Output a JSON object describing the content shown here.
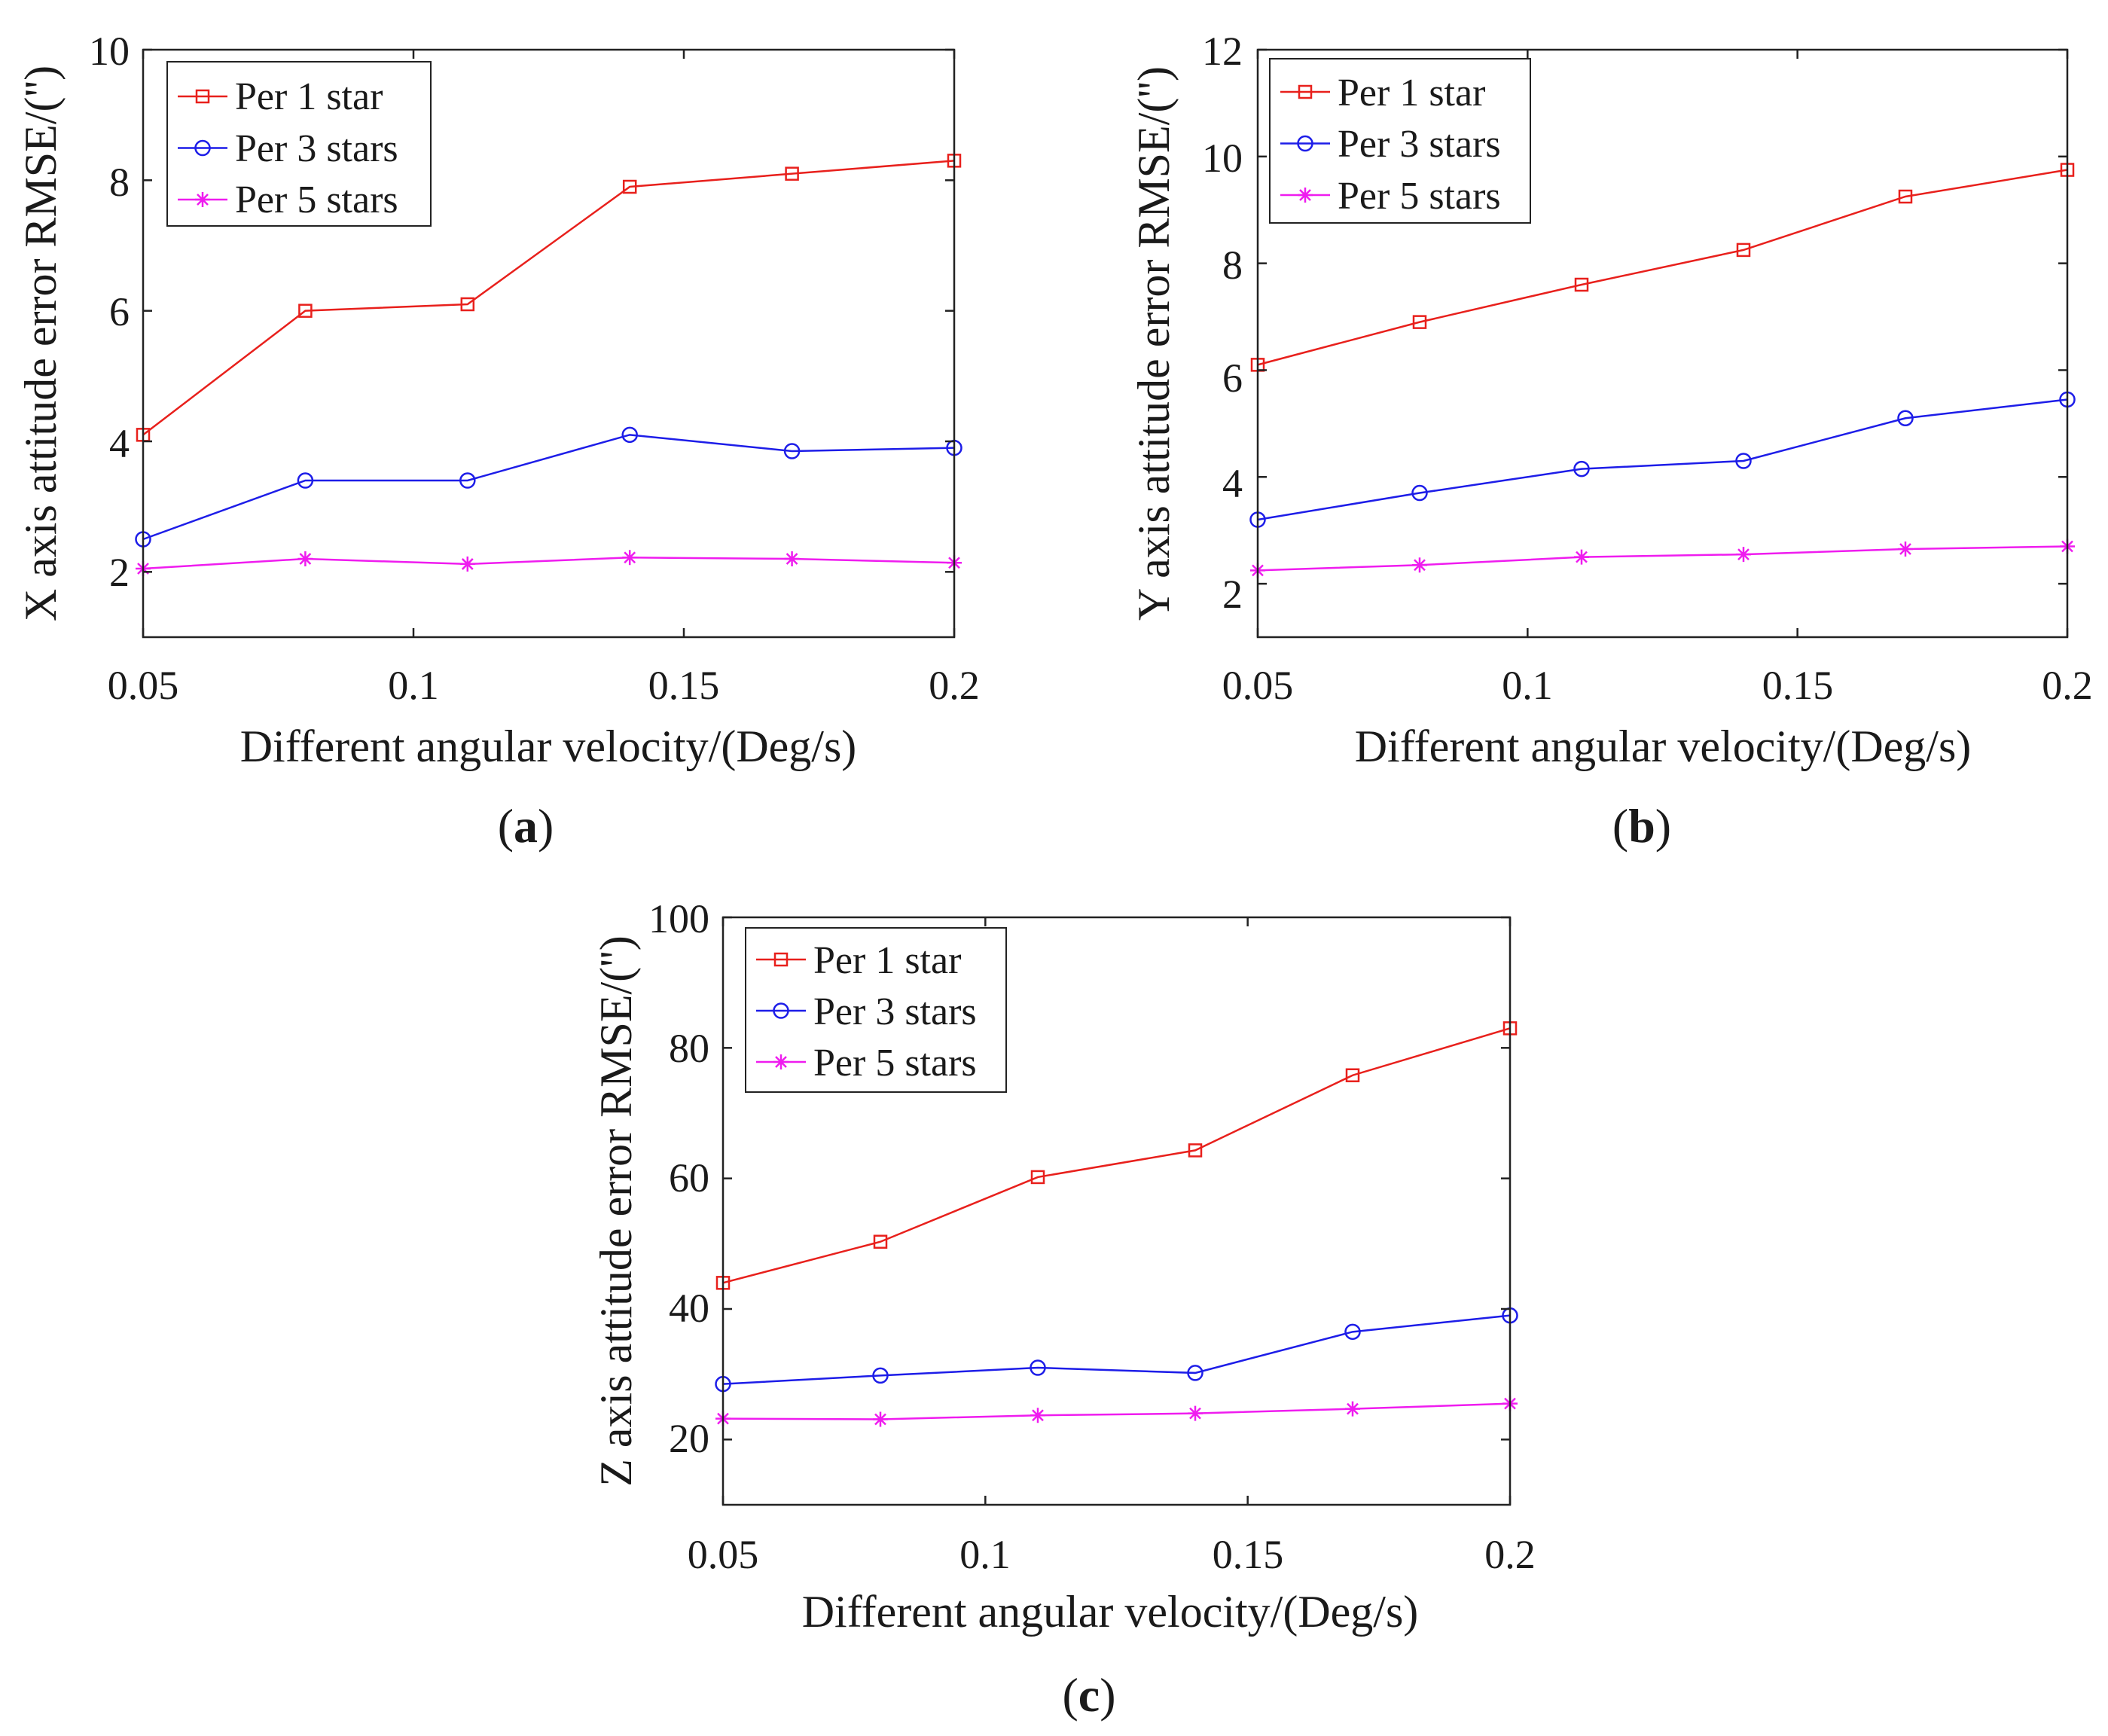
{
  "chart_data": [
    {
      "panel": "a",
      "type": "line",
      "xlabel": "Different angular velocity/(Deg/s)",
      "ylabel": "X axis attitude error RMSE/('')",
      "x": [
        0.05,
        0.08,
        0.11,
        0.14,
        0.17,
        0.2
      ],
      "xlim": [
        0.05,
        0.2
      ],
      "xticks": [
        0.05,
        0.1,
        0.15,
        0.2
      ],
      "xtick_labels": [
        "0.05",
        "0.1",
        "0.15",
        "0.2"
      ],
      "ylim": [
        1,
        10
      ],
      "yticks": [
        2,
        4,
        6,
        8,
        10
      ],
      "ytick_labels": [
        "2",
        "4",
        "6",
        "8",
        "10"
      ],
      "legend_position": "top-left",
      "series": [
        {
          "name": "Per 1 star",
          "color": "#e8201c",
          "marker": "square",
          "values": [
            4.1,
            6.0,
            6.1,
            7.9,
            8.1,
            8.3
          ]
        },
        {
          "name": "Per 3 stars",
          "color": "#1d1de8",
          "marker": "circle",
          "values": [
            2.5,
            3.4,
            3.4,
            4.1,
            3.85,
            3.9
          ]
        },
        {
          "name": "Per 5 stars",
          "color": "#ef1cef",
          "marker": "asterisk",
          "values": [
            2.05,
            2.2,
            2.12,
            2.22,
            2.2,
            2.14
          ]
        }
      ],
      "panel_label": {
        "open": "(",
        "letter": "a",
        "close": ")"
      }
    },
    {
      "panel": "b",
      "type": "line",
      "xlabel": "Different angular velocity/(Deg/s)",
      "ylabel": "Y axis attitude error RMSE/('')",
      "x": [
        0.05,
        0.08,
        0.11,
        0.14,
        0.17,
        0.2
      ],
      "xlim": [
        0.05,
        0.2
      ],
      "xticks": [
        0.05,
        0.1,
        0.15,
        0.2
      ],
      "xtick_labels": [
        "0.05",
        "0.1",
        "0.15",
        "0.2"
      ],
      "ylim": [
        1,
        12
      ],
      "yticks": [
        2,
        4,
        6,
        8,
        10,
        12
      ],
      "ytick_labels": [
        "2",
        "4",
        "6",
        "8",
        "10",
        "12"
      ],
      "legend_position": "top-left",
      "series": [
        {
          "name": "Per 1 star",
          "color": "#e8201c",
          "marker": "square",
          "values": [
            6.1,
            6.9,
            7.6,
            8.25,
            9.25,
            9.75
          ]
        },
        {
          "name": "Per 3 stars",
          "color": "#1d1de8",
          "marker": "circle",
          "values": [
            3.2,
            3.7,
            4.15,
            4.3,
            5.1,
            5.45
          ]
        },
        {
          "name": "Per 5 stars",
          "color": "#ef1cef",
          "marker": "asterisk",
          "values": [
            2.25,
            2.35,
            2.5,
            2.55,
            2.65,
            2.7
          ]
        }
      ],
      "panel_label": {
        "open": "(",
        "letter": "b",
        "close": ")"
      }
    },
    {
      "panel": "c",
      "type": "line",
      "xlabel": "Different angular velocity/(Deg/s)",
      "ylabel": "Z axis attitude error RMSE/('')",
      "x": [
        0.05,
        0.08,
        0.11,
        0.14,
        0.17,
        0.2
      ],
      "xlim": [
        0.05,
        0.2
      ],
      "xticks": [
        0.05,
        0.1,
        0.15,
        0.2
      ],
      "xtick_labels": [
        "0.05",
        "0.1",
        "0.15",
        "0.2"
      ],
      "ylim": [
        10,
        100
      ],
      "yticks": [
        20,
        40,
        60,
        80,
        100
      ],
      "ytick_labels": [
        "20",
        "40",
        "60",
        "80",
        "100"
      ],
      "legend_position": "top-left",
      "series": [
        {
          "name": "Per 1 star",
          "color": "#e8201c",
          "marker": "square",
          "values": [
            44,
            50.3,
            60.2,
            64.3,
            75.8,
            83
          ]
        },
        {
          "name": "Per 3 stars",
          "color": "#1d1de8",
          "marker": "circle",
          "values": [
            28.5,
            29.8,
            31,
            30.2,
            36.5,
            39
          ]
        },
        {
          "name": "Per 5 stars",
          "color": "#ef1cef",
          "marker": "asterisk",
          "values": [
            23.2,
            23.1,
            23.7,
            24,
            24.7,
            25.5
          ]
        }
      ],
      "panel_label": {
        "open": "(",
        "letter": "c",
        "close": ")"
      }
    }
  ]
}
